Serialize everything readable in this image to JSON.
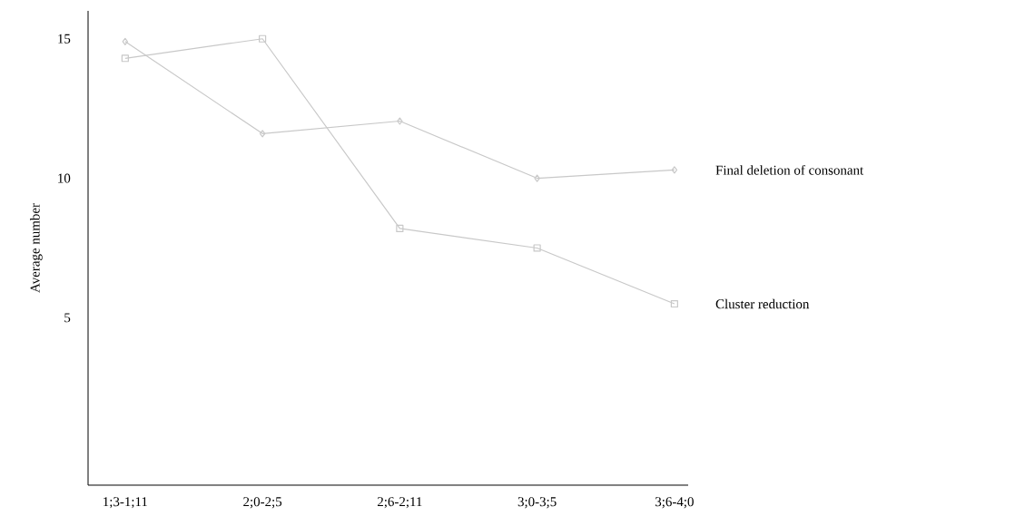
{
  "chart_data": {
    "type": "line",
    "ylabel": "Average number",
    "categories": [
      "1;3-1;11",
      "2;0-2;5",
      "2;6-2;11",
      "3;0-3;5",
      "3;6-4;0"
    ],
    "series": [
      {
        "name": "Final deletion of consonant",
        "color": "#c8c8c8",
        "marker": "diamond",
        "values": [
          14.9,
          11.6,
          12.05,
          10.0,
          10.3
        ]
      },
      {
        "name": "Cluster reduction",
        "color": "#c8c8c8",
        "marker": "square",
        "values": [
          14.3,
          15.0,
          8.2,
          7.5,
          5.5
        ]
      }
    ],
    "ylim": [
      -1,
      16
    ],
    "yticks": [
      5,
      10,
      15
    ],
    "grid": false,
    "legend": false,
    "line_style": "solid"
  }
}
